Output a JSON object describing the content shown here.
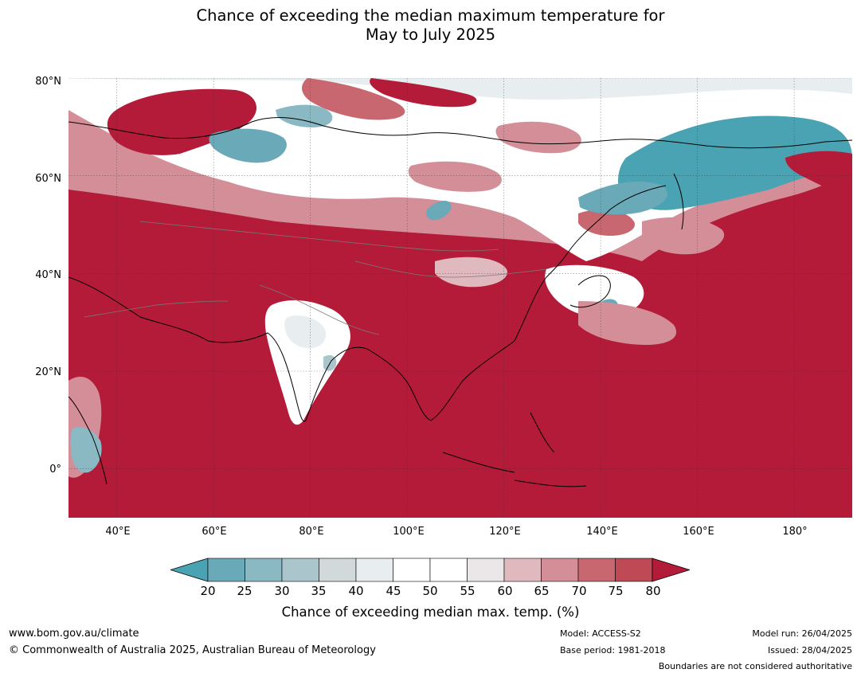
{
  "title": {
    "line1": "Chance of exceeding the median maximum temperature for",
    "line2": "May to July 2025"
  },
  "map": {
    "projection": "equirectangular",
    "lon_range": [
      30,
      192
    ],
    "lat_range": [
      -10,
      80
    ],
    "lat_ticks": [
      {
        "value": 80,
        "label": "80°N"
      },
      {
        "value": 60,
        "label": "60°N"
      },
      {
        "value": 40,
        "label": "40°N"
      },
      {
        "value": 20,
        "label": "20°N"
      },
      {
        "value": 0,
        "label": "0°"
      }
    ],
    "lon_ticks": [
      {
        "value": 40,
        "label": "40°E"
      },
      {
        "value": 60,
        "label": "60°E"
      },
      {
        "value": 80,
        "label": "80°E"
      },
      {
        "value": 100,
        "label": "100°E"
      },
      {
        "value": 120,
        "label": "120°E"
      },
      {
        "value": 140,
        "label": "140°E"
      },
      {
        "value": 160,
        "label": "160°E"
      },
      {
        "value": 180,
        "label": "180°"
      }
    ],
    "grid": true,
    "colors": {
      "very_warm": "#b31b38",
      "warm": "#c8596a",
      "neutral": "#ffffff",
      "cool": "#6aaab8",
      "very_cool": "#4aa3b3"
    }
  },
  "colorbar": {
    "ticks": [
      "20",
      "25",
      "30",
      "35",
      "40",
      "45",
      "50",
      "55",
      "60",
      "65",
      "70",
      "75",
      "80"
    ],
    "colors": [
      "#6aaab8",
      "#8ab9c4",
      "#aac6cc",
      "#d1d9db",
      "#e8eef0",
      "#ffffff",
      "#ffffff",
      "#ebe6e7",
      "#e0b9bf",
      "#d48e98",
      "#c8676f",
      "#bf4a55"
    ],
    "low_extend_color": "#4aa3b3",
    "high_extend_color": "#b31b38",
    "label": "Chance of exceeding median max. temp. (%)"
  },
  "footer": {
    "url": "www.bom.gov.au/climate",
    "copyright": "© Commonwealth of Australia 2025, Australian Bureau of Meteorology",
    "model": "Model: ACCESS-S2",
    "base_period": "Base period: 1981-2018",
    "model_run": "Model run: 26/04/2025",
    "issued": "Issued: 28/04/2025",
    "disclaimer": "Boundaries are not considered authoritative"
  }
}
